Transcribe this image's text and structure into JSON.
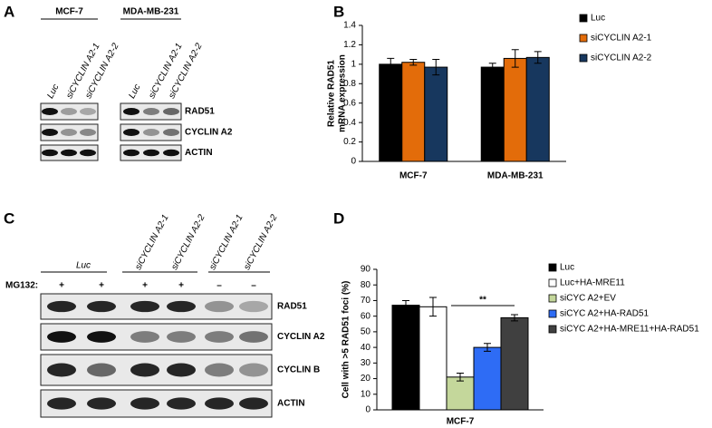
{
  "panel_labels": [
    "A",
    "B",
    "C",
    "D"
  ],
  "blot_a": {
    "groups": [
      "MCF-7",
      "MDA-MB-231"
    ],
    "lanes": [
      [
        "Luc",
        "siCYCLIN A2-1",
        "siCYCLIN A2-2"
      ],
      [
        "Luc",
        "siCYCLIN A2-1",
        "siCYCLIN A2-2"
      ]
    ],
    "rows": [
      "RAD51",
      "CYCLIN A2",
      "ACTIN"
    ]
  },
  "blot_c": {
    "group": "Luc",
    "lanes": [
      "siCYCLIN A2-1",
      "siCYCLIN A2-2",
      "siCYCLIN A2-1",
      "siCYCLIN A2-2"
    ],
    "treatment_label": "MG132:",
    "treatment": [
      "+",
      "+",
      "+",
      "+",
      "–",
      "–"
    ],
    "rows": [
      "RAD51",
      "CYCLIN A2",
      "CYCLIN B",
      "ACTIN"
    ]
  },
  "chart_data": [
    {
      "type": "bar",
      "ylabel": [
        "Relative RAD51",
        "mRNA expression"
      ],
      "categories": [
        "MCF-7",
        "MDA-MB-231"
      ],
      "series": [
        {
          "name": "Luc",
          "color": "#000000",
          "values": [
            1.0,
            0.97
          ],
          "errors": [
            0.06,
            0.04
          ]
        },
        {
          "name": "siCYCLIN A2-1",
          "color": "#e36c0a",
          "values": [
            1.02,
            1.06
          ],
          "errors": [
            0.03,
            0.09
          ]
        },
        {
          "name": "siCYCLIN A2-2",
          "color": "#17375e",
          "values": [
            0.97,
            1.07
          ],
          "errors": [
            0.08,
            0.06
          ]
        }
      ],
      "ylim": [
        0,
        1.4
      ],
      "yticks": [
        0,
        0.2,
        0.4,
        0.6,
        0.8,
        1,
        1.2,
        1.4
      ]
    },
    {
      "type": "bar",
      "ylabel": [
        "Cell with >5 RAD51 foci (%)"
      ],
      "categories": [
        "MCF-7"
      ],
      "series": [
        {
          "name": "Luc",
          "color": "#000000",
          "values": [
            67
          ],
          "errors": [
            3
          ]
        },
        {
          "name": "Luc+HA-MRE11",
          "color": "#ffffff",
          "values": [
            66
          ],
          "errors": [
            6
          ]
        },
        {
          "name": "siCYC A2+EV",
          "color": "#c4d79b",
          "values": [
            21
          ],
          "errors": [
            2.5
          ]
        },
        {
          "name": "siCYC A2+HA-RAD51",
          "color": "#2e6cf5",
          "values": [
            40
          ],
          "errors": [
            2.5
          ]
        },
        {
          "name": "siCYC A2+HA-MRE11+HA-RAD51",
          "color": "#404040",
          "values": [
            59
          ],
          "errors": [
            2
          ]
        }
      ],
      "annotation": "**",
      "ylim": [
        0,
        90
      ],
      "yticks": [
        0,
        10,
        20,
        30,
        40,
        50,
        60,
        70,
        80,
        90
      ]
    }
  ]
}
